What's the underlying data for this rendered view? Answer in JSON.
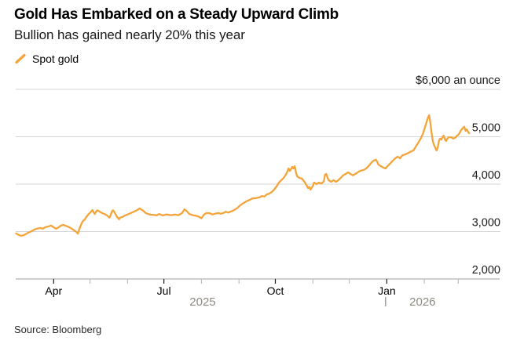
{
  "header": {
    "title": "Gold Has Embarked on a Steady Upward Climb",
    "subtitle": "Bullion has gained nearly 20% this year"
  },
  "legend": {
    "label": "Spot gold",
    "marker": "orange-slash-icon"
  },
  "footer": {
    "source": "Source: Bloomberg"
  },
  "colors": {
    "line": "#F3A43B",
    "grid": "#D6D6D6",
    "axis": "#9E9E9E",
    "tick_major": "#1A1A1A",
    "tick_minor": "#BFBFBF",
    "year_label": "#8D8983",
    "text": "#1A1A1A"
  },
  "chart_data": {
    "type": "line",
    "title": "Gold Has Embarked on a Steady Upward Climb",
    "subtitle": "Bullion has gained nearly 20% this year",
    "ylabel": "$ an ounce",
    "ylim": [
      2000,
      6000
    ],
    "grid": "horizontal",
    "legend_position": "top-left",
    "x_range": [
      "Mar 2025",
      "Mar 2026"
    ],
    "y_ticks": [
      {
        "value": 6000,
        "label": "$6,000 an ounce"
      },
      {
        "value": 5000,
        "label": "5,000"
      },
      {
        "value": 4000,
        "label": "4,000"
      },
      {
        "value": 3000,
        "label": "3,000"
      },
      {
        "value": 2000,
        "label": "2,000"
      }
    ],
    "x_ticks": [
      {
        "day": 31,
        "label": "Apr",
        "major": true
      },
      {
        "day": 61,
        "major": false
      },
      {
        "day": 92,
        "major": false
      },
      {
        "day": 122,
        "label": "Jul",
        "major": true
      },
      {
        "day": 153,
        "major": false
      },
      {
        "day": 184,
        "major": false
      },
      {
        "day": 214,
        "label": "Oct",
        "major": true
      },
      {
        "day": 245,
        "major": false
      },
      {
        "day": 275,
        "major": false
      },
      {
        "day": 306,
        "label": "Jan",
        "major": true
      },
      {
        "day": 337,
        "major": false
      },
      {
        "day": 365,
        "major": false
      }
    ],
    "year_labels": [
      {
        "label": "2025",
        "day": 154
      },
      {
        "label": "2026",
        "day": 335.5
      }
    ],
    "year_divider_day": 305,
    "series": [
      {
        "name": "Spot gold",
        "unit": "USD per troy ounce",
        "x_unit": "days since 2025-03-01",
        "points": [
          [
            0,
            2960
          ],
          [
            2,
            2930
          ],
          [
            4,
            2910
          ],
          [
            6,
            2920
          ],
          [
            8,
            2945
          ],
          [
            10,
            2975
          ],
          [
            13,
            3010
          ],
          [
            15,
            3040
          ],
          [
            17,
            3060
          ],
          [
            20,
            3075
          ],
          [
            22,
            3060
          ],
          [
            24,
            3090
          ],
          [
            27,
            3110
          ],
          [
            29,
            3125
          ],
          [
            31,
            3090
          ],
          [
            33,
            3060
          ],
          [
            35,
            3090
          ],
          [
            37,
            3125
          ],
          [
            39,
            3140
          ],
          [
            41,
            3120
          ],
          [
            44,
            3090
          ],
          [
            46,
            3060
          ],
          [
            48,
            3025
          ],
          [
            50,
            2985
          ],
          [
            51,
            2955
          ],
          [
            52,
            3040
          ],
          [
            54,
            3170
          ],
          [
            55,
            3215
          ],
          [
            57,
            3265
          ],
          [
            58,
            3310
          ],
          [
            60,
            3370
          ],
          [
            62,
            3420
          ],
          [
            63,
            3455
          ],
          [
            64,
            3405
          ],
          [
            65,
            3370
          ],
          [
            66,
            3420
          ],
          [
            67,
            3450
          ],
          [
            69,
            3420
          ],
          [
            71,
            3390
          ],
          [
            73,
            3370
          ],
          [
            75,
            3340
          ],
          [
            77,
            3295
          ],
          [
            78,
            3340
          ],
          [
            79,
            3420
          ],
          [
            80,
            3450
          ],
          [
            81,
            3420
          ],
          [
            82,
            3370
          ],
          [
            83,
            3320
          ],
          [
            85,
            3260
          ],
          [
            86,
            3295
          ],
          [
            88,
            3310
          ],
          [
            90,
            3340
          ],
          [
            93,
            3370
          ],
          [
            96,
            3405
          ],
          [
            99,
            3440
          ],
          [
            101,
            3470
          ],
          [
            102,
            3490
          ],
          [
            103,
            3470
          ],
          [
            105,
            3440
          ],
          [
            107,
            3390
          ],
          [
            109,
            3370
          ],
          [
            111,
            3355
          ],
          [
            114,
            3350
          ],
          [
            116,
            3340
          ],
          [
            118,
            3370
          ],
          [
            121,
            3340
          ],
          [
            124,
            3360
          ],
          [
            128,
            3345
          ],
          [
            131,
            3360
          ],
          [
            134,
            3345
          ],
          [
            137,
            3390
          ],
          [
            139,
            3470
          ],
          [
            141,
            3430
          ],
          [
            143,
            3370
          ],
          [
            146,
            3345
          ],
          [
            149,
            3330
          ],
          [
            151,
            3310
          ],
          [
            153,
            3280
          ],
          [
            155,
            3355
          ],
          [
            157,
            3390
          ],
          [
            160,
            3385
          ],
          [
            162,
            3360
          ],
          [
            164,
            3375
          ],
          [
            167,
            3390
          ],
          [
            169,
            3375
          ],
          [
            171,
            3390
          ],
          [
            173,
            3420
          ],
          [
            175,
            3400
          ],
          [
            177,
            3420
          ],
          [
            179,
            3440
          ],
          [
            181,
            3470
          ],
          [
            183,
            3505
          ],
          [
            185,
            3555
          ],
          [
            187,
            3590
          ],
          [
            189,
            3620
          ],
          [
            191,
            3650
          ],
          [
            193,
            3670
          ],
          [
            195,
            3700
          ],
          [
            198,
            3705
          ],
          [
            201,
            3720
          ],
          [
            203,
            3750
          ],
          [
            205,
            3740
          ],
          [
            207,
            3785
          ],
          [
            209,
            3800
          ],
          [
            211,
            3835
          ],
          [
            213,
            3885
          ],
          [
            215,
            3950
          ],
          [
            217,
            4035
          ],
          [
            219,
            4085
          ],
          [
            221,
            4135
          ],
          [
            223,
            4215
          ],
          [
            225,
            4330
          ],
          [
            226,
            4280
          ],
          [
            228,
            4365
          ],
          [
            229,
            4330
          ],
          [
            230,
            4380
          ],
          [
            231,
            4250
          ],
          [
            232,
            4165
          ],
          [
            234,
            4130
          ],
          [
            236,
            4115
          ],
          [
            238,
            4050
          ],
          [
            240,
            3965
          ],
          [
            241,
            3915
          ],
          [
            242,
            3940
          ],
          [
            243,
            3885
          ],
          [
            245,
            3965
          ],
          [
            246,
            4035
          ],
          [
            248,
            4000
          ],
          [
            250,
            4035
          ],
          [
            252,
            4010
          ],
          [
            254,
            4060
          ],
          [
            255,
            4200
          ],
          [
            256,
            4215
          ],
          [
            257,
            4140
          ],
          [
            258,
            4085
          ],
          [
            260,
            4050
          ],
          [
            262,
            4085
          ],
          [
            264,
            4050
          ],
          [
            266,
            4085
          ],
          [
            268,
            4135
          ],
          [
            270,
            4185
          ],
          [
            272,
            4215
          ],
          [
            274,
            4250
          ],
          [
            276,
            4215
          ],
          [
            278,
            4185
          ],
          [
            280,
            4215
          ],
          [
            282,
            4250
          ],
          [
            284,
            4280
          ],
          [
            287,
            4300
          ],
          [
            289,
            4330
          ],
          [
            291,
            4380
          ],
          [
            293,
            4445
          ],
          [
            295,
            4495
          ],
          [
            297,
            4515
          ],
          [
            298,
            4480
          ],
          [
            299,
            4415
          ],
          [
            301,
            4380
          ],
          [
            303,
            4350
          ],
          [
            305,
            4330
          ],
          [
            306,
            4365
          ],
          [
            308,
            4415
          ],
          [
            311,
            4495
          ],
          [
            313,
            4545
          ],
          [
            315,
            4580
          ],
          [
            317,
            4545
          ],
          [
            319,
            4610
          ],
          [
            321,
            4625
          ],
          [
            324,
            4660
          ],
          [
            326,
            4690
          ],
          [
            328,
            4710
          ],
          [
            330,
            4795
          ],
          [
            332,
            4875
          ],
          [
            334,
            4960
          ],
          [
            336,
            5075
          ],
          [
            338,
            5240
          ],
          [
            340,
            5405
          ],
          [
            341,
            5455
          ],
          [
            342,
            5290
          ],
          [
            343,
            5075
          ],
          [
            344,
            4910
          ],
          [
            345,
            4825
          ],
          [
            347,
            4710
          ],
          [
            348,
            4765
          ],
          [
            349,
            4910
          ],
          [
            350,
            4960
          ],
          [
            351,
            4940
          ],
          [
            352,
            4990
          ],
          [
            353,
            5025
          ],
          [
            354,
            4940
          ],
          [
            355,
            4910
          ],
          [
            356,
            4960
          ],
          [
            357,
            4990
          ],
          [
            359,
            4990
          ],
          [
            361,
            4960
          ],
          [
            363,
            4990
          ],
          [
            364,
            5025
          ],
          [
            365,
            5040
          ],
          [
            366,
            5075
          ],
          [
            367,
            5125
          ],
          [
            369,
            5190
          ],
          [
            370,
            5210
          ],
          [
            371,
            5125
          ],
          [
            372,
            5155
          ],
          [
            373,
            5105
          ],
          [
            374,
            5075
          ]
        ]
      }
    ]
  }
}
